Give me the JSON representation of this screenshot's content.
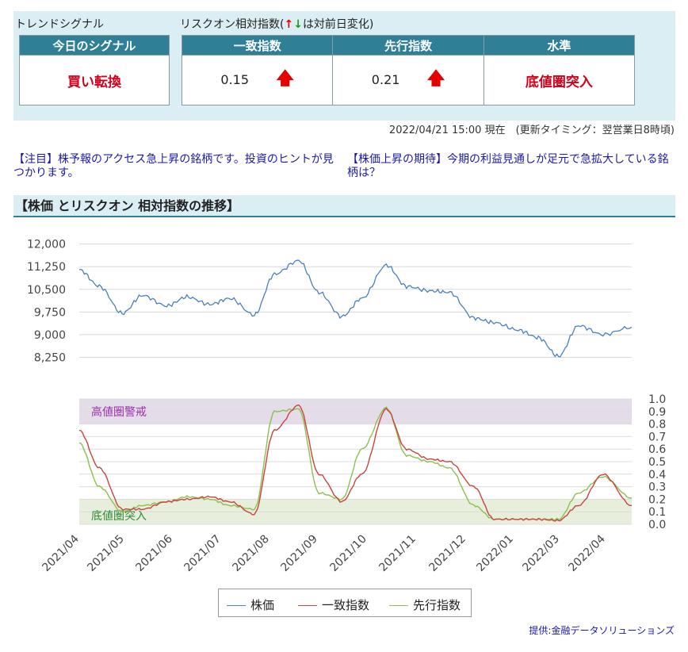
{
  "trend_signal": {
    "title": "トレンドシグナル",
    "header": "今日のシグナル",
    "value": "買い転換"
  },
  "risk_on": {
    "title_prefix": "リスクオン相対指数(",
    "arrow_up": "↑",
    "arrow_down": "↓",
    "title_suffix": "は対前日変化)",
    "headers": [
      "一致指数",
      "先行指数",
      "水準"
    ],
    "coincident_value": "0.15",
    "leading_value": "0.21",
    "level": "底値圏突入",
    "change_arrow": "🡅"
  },
  "timestamp": "2022/04/21 15:00 現在　(更新タイミング：翌営業日8時頃)",
  "news": [
    "【注目】株予報のアクセス急上昇の銘柄です。投資のヒントが見つかります。",
    "【株価上昇の期待】今期の利益見通しが足元で急拡大している銘柄は？"
  ],
  "section_title": "【株価 とリスクオン 相対指数の推移】",
  "credit": "提供:金融データソリューションズ",
  "colors": {
    "stock": "#4a7fc1",
    "coincident": "#c8443f",
    "leading": "#8ebf4f",
    "high_zone": "#e5dcea",
    "low_zone": "#e8eedc",
    "high_label": "#9933aa",
    "low_label": "#2e8b3a"
  },
  "chart_data": [
    {
      "type": "line",
      "title": "",
      "x_ticks": [
        "2021/04",
        "2021/05",
        "2021/06",
        "2021/07",
        "2021/08",
        "2021/09",
        "2021/10",
        "2021/11",
        "2021/12",
        "2022/01",
        "2022/03",
        "2022/04"
      ],
      "ylim": [
        8000,
        12200
      ],
      "y_ticks": [
        12000,
        11250,
        10500,
        9750,
        9000,
        8250
      ],
      "y_tick_labels": [
        "12,000",
        "11,250",
        "10,500",
        "9,750",
        "9,000",
        "8,250"
      ],
      "grid": true,
      "series": [
        {
          "name": "株価",
          "x": [
            "2021-04-01",
            "2021-04-15",
            "2021-05-01",
            "2021-05-15",
            "2021-06-01",
            "2021-06-15",
            "2021-07-01",
            "2021-07-15",
            "2021-08-01",
            "2021-08-15",
            "2021-09-01",
            "2021-09-15",
            "2021-10-01",
            "2021-10-15",
            "2021-11-01",
            "2021-11-15",
            "2021-12-01",
            "2021-12-15",
            "2022-01-01",
            "2022-01-15",
            "2022-02-01",
            "2022-02-15",
            "2022-03-01",
            "2022-03-15",
            "2022-04-01",
            "2022-04-21"
          ],
          "values": [
            11150,
            10600,
            9700,
            10300,
            9950,
            10250,
            10000,
            10200,
            9650,
            11000,
            11450,
            10400,
            9600,
            10200,
            11300,
            10600,
            10450,
            10400,
            9550,
            9400,
            9150,
            8900,
            8280,
            9300,
            9000,
            9250
          ]
        }
      ]
    },
    {
      "type": "line",
      "title": "",
      "ylim": [
        0,
        1.0
      ],
      "y_ticks": [
        0.0,
        0.1,
        0.2,
        0.3,
        0.4,
        0.5,
        0.6,
        0.7,
        0.8,
        0.9,
        1.0
      ],
      "bands": [
        {
          "label": "高値圏警戒",
          "from": 0.8,
          "to": 1.0
        },
        {
          "label": "底値圏突入",
          "from": 0.0,
          "to": 0.2
        }
      ],
      "grid": true,
      "legend": "bottom",
      "series": [
        {
          "name": "一致指数",
          "x": [
            "2021-04-01",
            "2021-04-15",
            "2021-05-01",
            "2021-05-15",
            "2021-06-01",
            "2021-06-15",
            "2021-07-01",
            "2021-07-15",
            "2021-08-01",
            "2021-08-15",
            "2021-09-01",
            "2021-09-15",
            "2021-10-01",
            "2021-10-15",
            "2021-11-01",
            "2021-11-15",
            "2021-12-01",
            "2021-12-15",
            "2022-01-01",
            "2022-01-15",
            "2022-02-01",
            "2022-02-15",
            "2022-03-01",
            "2022-03-15",
            "2022-04-01",
            "2022-04-21"
          ],
          "values": [
            0.75,
            0.45,
            0.12,
            0.12,
            0.18,
            0.2,
            0.22,
            0.18,
            0.08,
            0.75,
            0.95,
            0.4,
            0.18,
            0.4,
            0.92,
            0.6,
            0.52,
            0.5,
            0.3,
            0.04,
            0.04,
            0.04,
            0.03,
            0.15,
            0.4,
            0.15
          ]
        },
        {
          "name": "先行指数",
          "x": [
            "2021-04-01",
            "2021-04-15",
            "2021-05-01",
            "2021-05-15",
            "2021-06-01",
            "2021-06-15",
            "2021-07-01",
            "2021-07-15",
            "2021-08-01",
            "2021-08-15",
            "2021-09-01",
            "2021-09-15",
            "2021-10-01",
            "2021-10-15",
            "2021-11-01",
            "2021-11-15",
            "2021-12-01",
            "2021-12-15",
            "2022-01-01",
            "2022-01-15",
            "2022-02-01",
            "2022-02-15",
            "2022-03-01",
            "2022-03-15",
            "2022-04-01",
            "2022-04-21"
          ],
          "values": [
            0.65,
            0.3,
            0.1,
            0.15,
            0.18,
            0.22,
            0.2,
            0.15,
            0.12,
            0.9,
            0.92,
            0.25,
            0.2,
            0.6,
            0.93,
            0.55,
            0.5,
            0.45,
            0.15,
            0.04,
            0.04,
            0.04,
            0.04,
            0.25,
            0.38,
            0.21
          ]
        }
      ]
    }
  ]
}
